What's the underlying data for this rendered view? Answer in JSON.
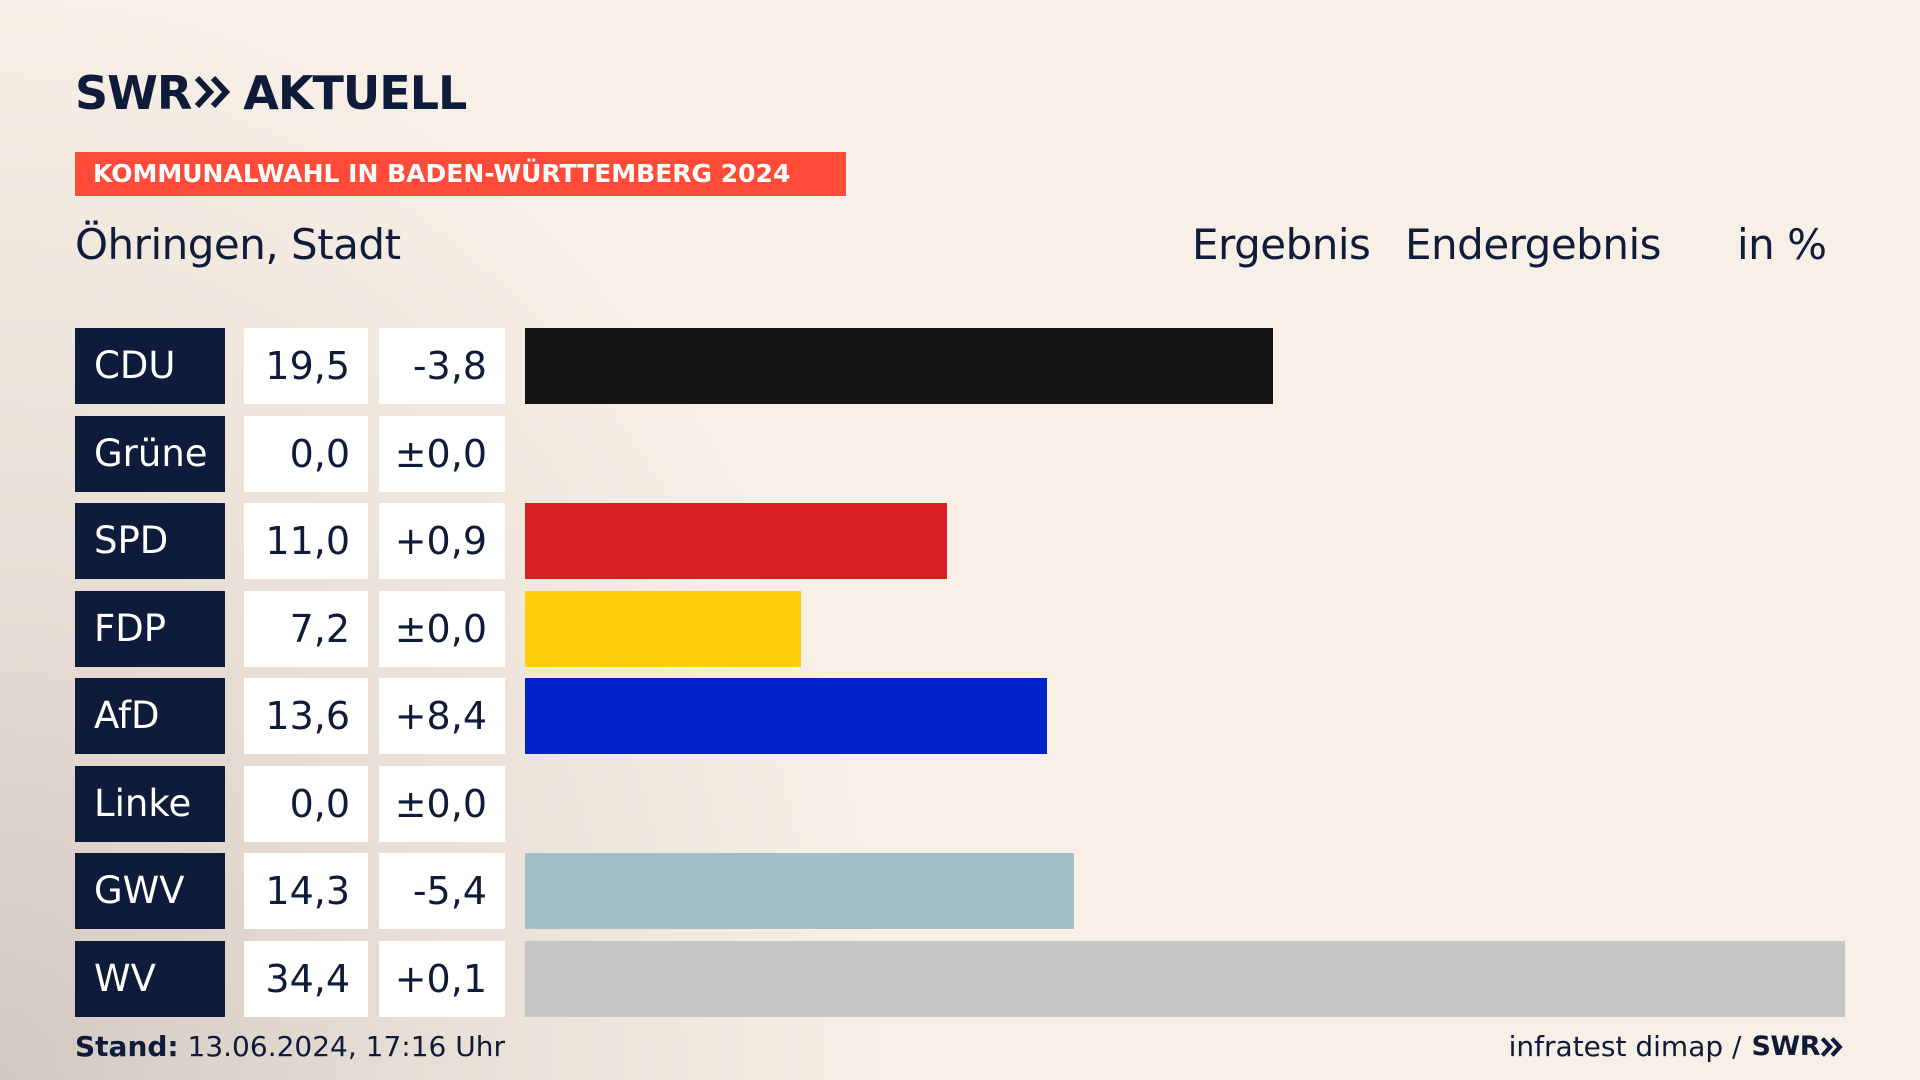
{
  "brand": {
    "logo_left": "SWR",
    "logo_right": "AKTUELL"
  },
  "banner": "KOMMUNALWAHL IN BADEN-WÜRTTEMBERG 2024",
  "header": {
    "place": "Öhringen, Stadt",
    "ergebnis": "Ergebnis",
    "status": "Endergebnis",
    "unit": "in %"
  },
  "colors": {
    "navy": "#0f1b3a",
    "banner": "#ff4b37"
  },
  "chart_data": {
    "type": "bar",
    "orientation": "horizontal",
    "categories": [
      "CDU",
      "Grüne",
      "SPD",
      "FDP",
      "AfD",
      "Linke",
      "GWV",
      "WV"
    ],
    "values": [
      19.5,
      0.0,
      11.0,
      7.2,
      13.6,
      0.0,
      14.3,
      34.4
    ],
    "value_labels": [
      "19,5",
      "0,0",
      "11,0",
      "7,2",
      "13,6",
      "0,0",
      "14,3",
      "34,4"
    ],
    "diff_labels": [
      "-3,8",
      "±0,0",
      "+0,9",
      "±0,0",
      "+8,4",
      "±0,0",
      "-5,4",
      "+0,1"
    ],
    "bar_colors": [
      "#141414",
      "#46962b",
      "#d7201f",
      "#ffcd0a",
      "#0221c8",
      "#be3075",
      "#a3bec7",
      "#c6c6c6"
    ],
    "xlim": [
      0,
      34.4
    ]
  },
  "footer": {
    "stand_label": "Stand:",
    "stand_value": "13.06.2024, 17:16 Uhr",
    "source": "infratest dimap /",
    "source_brand": "SWR"
  }
}
